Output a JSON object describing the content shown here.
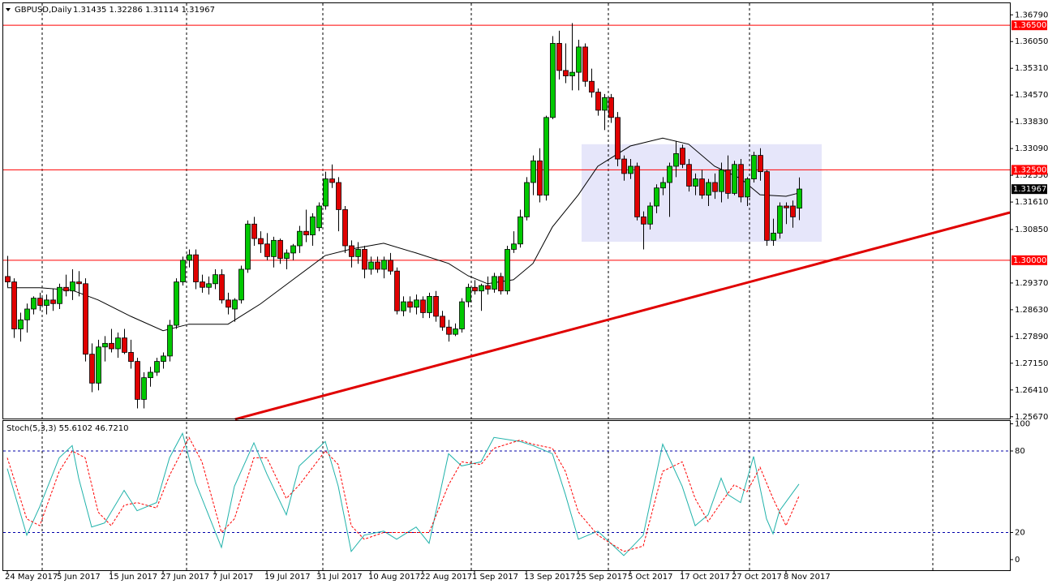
{
  "chart_data": [
    {
      "type": "candlestick",
      "title": "GBPUSD,Daily",
      "subtitle": "1.31435 1.32286 1.31114 1.31967",
      "xlim": [
        -0.625,
        154.5
      ],
      "ylim": [
        1.2562,
        1.3711
      ],
      "yticks": [
        {
          "value": 1.3679,
          "label": "1.36790"
        },
        {
          "value": 1.3605,
          "label": "1.36050"
        },
        {
          "value": 1.3531,
          "label": "1.35310"
        },
        {
          "value": 1.3457,
          "label": "1.34570"
        },
        {
          "value": 1.3383,
          "label": "1.33830"
        },
        {
          "value": 1.3309,
          "label": "1.33090"
        },
        {
          "value": 1.3235,
          "label": "1.32350"
        },
        {
          "value": 1.3161,
          "label": "1.31610"
        },
        {
          "value": 1.3085,
          "label": "1.30850"
        },
        {
          "value": 1.2937,
          "label": "1.29370"
        },
        {
          "value": 1.2863,
          "label": "1.28630"
        },
        {
          "value": 1.2789,
          "label": "1.27890"
        },
        {
          "value": 1.2715,
          "label": "1.27150"
        },
        {
          "value": 1.2641,
          "label": "1.26410"
        },
        {
          "value": 1.2567,
          "label": "1.25670"
        }
      ],
      "date_labels": [
        {
          "value": 0,
          "label": "24 May 2017"
        },
        {
          "value": 8,
          "label": "5 Jun 2017"
        },
        {
          "value": 16,
          "label": "15 Jun 2017"
        },
        {
          "value": 24,
          "label": "27 Jun 2017"
        },
        {
          "value": 32,
          "label": "7 Jul 2017"
        },
        {
          "value": 40,
          "label": "19 Jul 2017"
        },
        {
          "value": 48,
          "label": "31 Jul 2017"
        },
        {
          "value": 56,
          "label": "10 Aug 2017"
        },
        {
          "value": 64,
          "label": "22 Aug 2017"
        },
        {
          "value": 72,
          "label": "1 Sep 2017"
        },
        {
          "value": 80,
          "label": "13 Sep 2017"
        },
        {
          "value": 88,
          "label": "25 Sep 2017"
        },
        {
          "value": 96,
          "label": "5 Oct 2017"
        },
        {
          "value": 104,
          "label": "17 Oct 2017"
        },
        {
          "value": 112,
          "label": "27 Oct 2017"
        },
        {
          "value": 120,
          "label": "8 Nov 2017"
        }
      ],
      "xgrid": [
        5.375,
        27.625,
        48.625,
        71.5,
        92.625,
        114.375,
        142.625
      ],
      "up_color": "#00c800",
      "down_color": "#e00000",
      "ohlc": [
        [
          1.2955,
          1.3012,
          1.2925,
          1.294
        ],
        [
          1.294,
          1.295,
          1.2785,
          1.281
        ],
        [
          1.281,
          1.2855,
          1.2775,
          1.2835
        ],
        [
          1.2835,
          1.288,
          1.28,
          1.2865
        ],
        [
          1.2865,
          1.29,
          1.285,
          1.2895
        ],
        [
          1.2895,
          1.291,
          1.286,
          1.2875
        ],
        [
          1.2875,
          1.2905,
          1.285,
          1.289
        ],
        [
          1.289,
          1.292,
          1.286,
          1.288
        ],
        [
          1.288,
          1.2935,
          1.2865,
          1.2925
        ],
        [
          1.2925,
          1.296,
          1.29,
          1.2915
        ],
        [
          1.2915,
          1.2975,
          1.289,
          1.294
        ],
        [
          1.294,
          1.297,
          1.29,
          1.2935
        ],
        [
          1.2935,
          1.295,
          1.272,
          1.274
        ],
        [
          1.274,
          1.277,
          1.2635,
          1.266
        ],
        [
          1.266,
          1.278,
          1.264,
          1.276
        ],
        [
          1.276,
          1.279,
          1.272,
          1.277
        ],
        [
          1.277,
          1.281,
          1.2745,
          1.2755
        ],
        [
          1.2755,
          1.28,
          1.273,
          1.2785
        ],
        [
          1.2785,
          1.281,
          1.274,
          1.2745
        ],
        [
          1.2745,
          1.278,
          1.27,
          1.272
        ],
        [
          1.272,
          1.273,
          1.259,
          1.2615
        ],
        [
          1.2615,
          1.269,
          1.259,
          1.2675
        ],
        [
          1.2675,
          1.2705,
          1.265,
          1.269
        ],
        [
          1.269,
          1.273,
          1.268,
          1.272
        ],
        [
          1.272,
          1.2745,
          1.27,
          1.2735
        ],
        [
          1.2735,
          1.2835,
          1.272,
          1.282
        ],
        [
          1.282,
          1.295,
          1.281,
          1.294
        ],
        [
          1.294,
          1.301,
          1.293,
          1.3
        ],
        [
          1.3,
          1.303,
          1.298,
          1.3015
        ],
        [
          1.3015,
          1.303,
          1.292,
          1.294
        ],
        [
          1.294,
          1.296,
          1.291,
          1.2925
        ],
        [
          1.2925,
          1.2955,
          1.2905,
          1.2935
        ],
        [
          1.2935,
          1.2975,
          1.292,
          1.296
        ],
        [
          1.296,
          1.2975,
          1.288,
          1.289
        ],
        [
          1.289,
          1.291,
          1.285,
          1.287
        ],
        [
          1.2865,
          1.2895,
          1.283,
          1.289
        ],
        [
          1.289,
          1.2985,
          1.288,
          1.2975
        ],
        [
          1.2975,
          1.311,
          1.2965,
          1.31
        ],
        [
          1.31,
          1.312,
          1.304,
          1.306
        ],
        [
          1.306,
          1.308,
          1.302,
          1.3045
        ],
        [
          1.3045,
          1.3075,
          1.3,
          1.301
        ],
        [
          1.301,
          1.3065,
          1.298,
          1.3055
        ],
        [
          1.3055,
          1.306,
          1.299,
          1.3005
        ],
        [
          1.3005,
          1.303,
          1.2975,
          1.302
        ],
        [
          1.302,
          1.3045,
          1.3,
          1.304
        ],
        [
          1.304,
          1.3095,
          1.302,
          1.308
        ],
        [
          1.308,
          1.314,
          1.305,
          1.307
        ],
        [
          1.307,
          1.313,
          1.304,
          1.312
        ],
        [
          1.309,
          1.316,
          1.308,
          1.315
        ],
        [
          1.315,
          1.3245,
          1.314,
          1.3225
        ],
        [
          1.3225,
          1.3265,
          1.32,
          1.3215
        ],
        [
          1.3215,
          1.323,
          1.308,
          1.314
        ],
        [
          1.314,
          1.315,
          1.302,
          1.304
        ],
        [
          1.304,
          1.3055,
          1.298,
          1.301
        ],
        [
          1.301,
          1.305,
          1.299,
          1.303
        ],
        [
          1.303,
          1.304,
          1.295,
          1.2975
        ],
        [
          1.2975,
          1.301,
          1.296,
          1.2995
        ],
        [
          1.2995,
          1.301,
          1.2965,
          1.2975
        ],
        [
          1.2975,
          1.301,
          1.295,
          1.3
        ],
        [
          1.3,
          1.302,
          1.296,
          1.297
        ],
        [
          1.297,
          1.298,
          1.285,
          1.286
        ],
        [
          1.286,
          1.29,
          1.2845,
          1.2885
        ],
        [
          1.2885,
          1.29,
          1.2855,
          1.287
        ],
        [
          1.287,
          1.2905,
          1.285,
          1.289
        ],
        [
          1.289,
          1.29,
          1.284,
          1.2855
        ],
        [
          1.2855,
          1.291,
          1.284,
          1.29
        ],
        [
          1.29,
          1.2915,
          1.283,
          1.2845
        ],
        [
          1.2845,
          1.286,
          1.2805,
          1.2815
        ],
        [
          1.2815,
          1.2835,
          1.2775,
          1.2795
        ],
        [
          1.2795,
          1.2825,
          1.279,
          1.281
        ],
        [
          1.281,
          1.2895,
          1.28,
          1.2885
        ],
        [
          1.2885,
          1.2935,
          1.287,
          1.2925
        ],
        [
          1.2925,
          1.2945,
          1.2905,
          1.2915
        ],
        [
          1.2915,
          1.2935,
          1.286,
          1.293
        ],
        [
          1.293,
          1.2955,
          1.2905,
          1.292
        ],
        [
          1.292,
          1.2965,
          1.291,
          1.2955
        ],
        [
          1.2955,
          1.2965,
          1.2905,
          1.2915
        ],
        [
          1.2915,
          1.304,
          1.2905,
          1.303
        ],
        [
          1.303,
          1.308,
          1.302,
          1.3045
        ],
        [
          1.3045,
          1.314,
          1.3035,
          1.312
        ],
        [
          1.312,
          1.323,
          1.311,
          1.3215
        ],
        [
          1.3215,
          1.329,
          1.318,
          1.3275
        ],
        [
          1.3275,
          1.331,
          1.316,
          1.318
        ],
        [
          1.318,
          1.34,
          1.3165,
          1.3395
        ],
        [
          1.3395,
          1.362,
          1.339,
          1.36
        ],
        [
          1.36,
          1.3635,
          1.35,
          1.3525
        ],
        [
          1.3525,
          1.36,
          1.349,
          1.351
        ],
        [
          1.351,
          1.3656,
          1.347,
          1.352
        ],
        [
          1.352,
          1.361,
          1.347,
          1.359
        ],
        [
          1.359,
          1.36,
          1.348,
          1.3495
        ],
        [
          1.3495,
          1.353,
          1.345,
          1.3465
        ],
        [
          1.3465,
          1.3475,
          1.34,
          1.3415
        ],
        [
          1.3415,
          1.346,
          1.336,
          1.345
        ],
        [
          1.345,
          1.346,
          1.338,
          1.3395
        ],
        [
          1.3395,
          1.341,
          1.326,
          1.328
        ],
        [
          1.328,
          1.329,
          1.322,
          1.324
        ],
        [
          1.324,
          1.328,
          1.3225,
          1.326
        ],
        [
          1.326,
          1.327,
          1.311,
          1.312
        ],
        [
          1.312,
          1.3135,
          1.303,
          1.31
        ],
        [
          1.31,
          1.316,
          1.3085,
          1.315
        ],
        [
          1.315,
          1.321,
          1.313,
          1.32
        ],
        [
          1.32,
          1.323,
          1.318,
          1.3215
        ],
        [
          1.3215,
          1.327,
          1.312,
          1.326
        ],
        [
          1.326,
          1.333,
          1.323,
          1.3295
        ],
        [
          1.331,
          1.332,
          1.3255,
          1.3265
        ],
        [
          1.3265,
          1.328,
          1.319,
          1.3205
        ],
        [
          1.3205,
          1.324,
          1.318,
          1.3225
        ],
        [
          1.3225,
          1.325,
          1.317,
          1.318
        ],
        [
          1.318,
          1.3225,
          1.315,
          1.3215
        ],
        [
          1.3215,
          1.324,
          1.317,
          1.319
        ],
        [
          1.319,
          1.327,
          1.316,
          1.325
        ],
        [
          1.325,
          1.329,
          1.317,
          1.3185
        ],
        [
          1.3185,
          1.3275,
          1.318,
          1.3265
        ],
        [
          1.3265,
          1.328,
          1.316,
          1.3175
        ],
        [
          1.3175,
          1.323,
          1.315,
          1.3225
        ],
        [
          1.3225,
          1.33,
          1.3215,
          1.329
        ],
        [
          1.329,
          1.331,
          1.322,
          1.3245
        ],
        [
          1.3245,
          1.325,
          1.304,
          1.3055
        ],
        [
          1.3055,
          1.3115,
          1.304,
          1.3075
        ],
        [
          1.3075,
          1.316,
          1.306,
          1.315
        ],
        [
          1.315,
          1.316,
          1.31,
          1.3145
        ],
        [
          1.315,
          1.3165,
          1.309,
          1.312
        ],
        [
          1.3144,
          1.3229,
          1.3111,
          1.3197
        ]
      ],
      "ma": {
        "color": "#000000",
        "x": [
          0,
          5,
          10,
          14,
          19,
          24,
          28,
          34,
          35,
          39,
          44,
          49,
          53,
          58,
          63,
          68,
          71,
          74,
          78,
          81,
          84,
          88,
          91,
          96,
          101,
          105,
          109,
          113,
          116,
          120,
          122
        ],
        "values": [
          1.2924,
          1.2924,
          1.2917,
          1.289,
          1.2845,
          1.2805,
          1.2823,
          1.2823,
          1.2834,
          1.2879,
          1.2946,
          1.3013,
          1.3031,
          1.3047,
          1.302,
          1.2991,
          1.2957,
          1.2935,
          1.2946,
          1.2991,
          1.3092,
          1.3181,
          1.326,
          1.3316,
          1.3338,
          1.3321,
          1.326,
          1.3226,
          1.3181,
          1.3177,
          1.3186
        ]
      },
      "hlines": [
        {
          "value": 1.365,
          "label": "1.36500"
        },
        {
          "value": 1.325,
          "label": "1.32500"
        },
        {
          "value": 1.3,
          "label": "1.30000"
        }
      ],
      "hline_color": "#ff0000",
      "last_price": {
        "value": 1.31967,
        "label": "1.31967"
      },
      "trendline": {
        "color": "#e00000",
        "x": [
          35.1,
          154.5
        ],
        "values": [
          1.256,
          1.3132
        ]
      },
      "rectangle": {
        "color": "#e6e6fa",
        "x": [
          88.5,
          125.5
        ],
        "values": [
          1.3051,
          1.3321
        ]
      }
    },
    {
      "type": "line",
      "title": "Stoch(5,3,3) 55.6102 46.7210",
      "xlim": [
        -0.625,
        154.5
      ],
      "ylim": [
        -7.8,
        102.1
      ],
      "yticks": [
        0,
        20,
        80,
        100
      ],
      "levels": [
        20,
        80
      ],
      "level_color": "#0000aa",
      "series": [
        {
          "color": "#20b2aa",
          "dash": false,
          "x": [
            0,
            3,
            5,
            8,
            10,
            11,
            13,
            15,
            18,
            20,
            23,
            25,
            27,
            29,
            33,
            35,
            38,
            40,
            43,
            45,
            49,
            51,
            53,
            55,
            58,
            60,
            63,
            65,
            68,
            70,
            73,
            75,
            79,
            81,
            84,
            86,
            88,
            91,
            95,
            98,
            101,
            104,
            106,
            108,
            110,
            111,
            113,
            115,
            117,
            118,
            119,
            122
          ],
          "values": [
            67,
            18,
            39,
            75,
            84,
            60,
            24,
            27,
            51,
            36,
            42,
            75,
            93,
            57,
            9,
            54,
            86,
            63,
            33,
            69,
            87,
            54,
            6,
            18,
            21,
            15,
            24,
            12,
            78,
            69,
            72,
            90,
            87,
            84,
            78,
            48,
            15,
            21,
            3,
            18,
            85,
            54,
            25,
            33,
            60,
            48,
            42,
            76,
            30,
            19,
            36,
            55.6102
          ]
        },
        {
          "color": "#ff0000",
          "dash": true,
          "x": [
            0,
            3,
            5,
            8,
            10,
            12,
            14,
            16,
            18,
            20,
            23,
            25,
            28,
            30,
            33,
            35,
            38,
            40,
            43,
            45,
            49,
            51,
            53,
            55,
            58,
            60,
            63,
            65,
            68,
            70,
            73,
            75,
            79,
            81,
            84,
            86,
            88,
            91,
            95,
            98,
            101,
            104,
            106,
            108,
            110,
            112,
            114,
            116,
            118,
            120,
            122
          ],
          "values": [
            75,
            30,
            25,
            65,
            80,
            75,
            35,
            25,
            40,
            42,
            38,
            62,
            90,
            72,
            20,
            30,
            75,
            75,
            45,
            55,
            80,
            70,
            25,
            15,
            20,
            20,
            20,
            20,
            55,
            72,
            70,
            82,
            88,
            85,
            82,
            65,
            35,
            18,
            6,
            10,
            65,
            72,
            45,
            28,
            42,
            55,
            50,
            68,
            45,
            25,
            46.721
          ]
        }
      ]
    }
  ]
}
